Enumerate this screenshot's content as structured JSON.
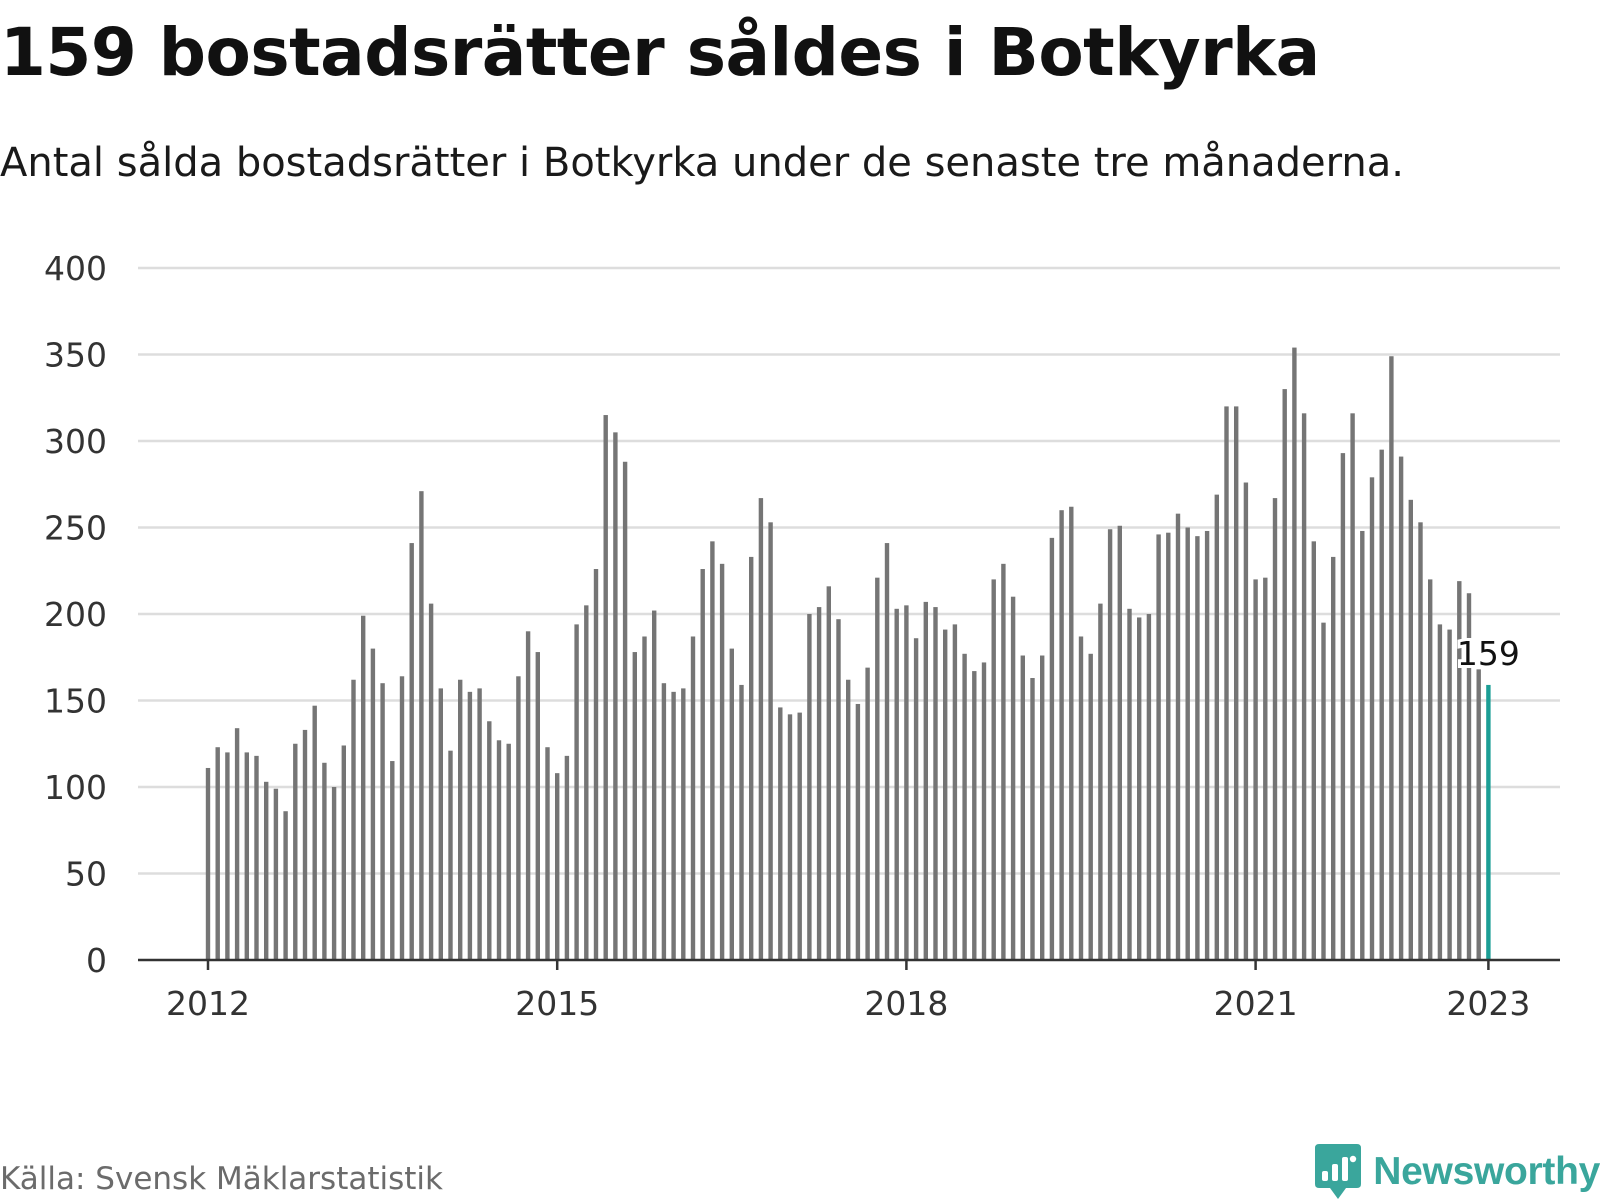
{
  "title": "159 bostadsrätter såldes i Botkyrka",
  "subtitle": "Antal sålda bostadsrätter i Botkyrka under de senaste tre månaderna.",
  "source": "Källa: Svensk Mäklarstatistik",
  "brand": {
    "name": "Newsworthy",
    "icon": "newsworthy-chart-bubble-icon",
    "color": "#3aa69c"
  },
  "colors": {
    "bar": "#757575",
    "highlight": "#1c9e95",
    "grid": "#dddddd",
    "axis": "#333333",
    "text": "#333333"
  },
  "chart_data": {
    "type": "bar",
    "x_start": "2012-01",
    "x_end": "2023-01",
    "xticks": [
      "2012",
      "2015",
      "2018",
      "2021",
      "2023"
    ],
    "yticks": [
      "0",
      "50",
      "100",
      "150",
      "200",
      "250",
      "300",
      "350",
      "400"
    ],
    "ylim": [
      0,
      400
    ],
    "grid": true,
    "values": [
      111,
      123,
      120,
      134,
      120,
      118,
      103,
      99,
      86,
      125,
      133,
      147,
      114,
      100,
      124,
      162,
      199,
      180,
      160,
      115,
      164,
      241,
      271,
      206,
      157,
      121,
      162,
      155,
      157,
      138,
      127,
      125,
      164,
      190,
      178,
      123,
      108,
      118,
      194,
      205,
      226,
      315,
      305,
      288,
      178,
      187,
      202,
      160,
      155,
      157,
      187,
      226,
      242,
      229,
      180,
      159,
      233,
      267,
      253,
      146,
      142,
      143,
      200,
      204,
      216,
      197,
      162,
      148,
      169,
      221,
      241,
      203,
      205,
      186,
      207,
      204,
      191,
      194,
      177,
      167,
      172,
      220,
      229,
      210,
      176,
      163,
      176,
      244,
      260,
      262,
      187,
      177,
      206,
      249,
      251,
      203,
      198,
      200,
      246,
      247,
      258,
      250,
      245,
      248,
      269,
      320,
      320,
      276,
      220,
      221,
      267,
      330,
      354,
      316,
      242,
      195,
      233,
      293,
      316,
      248,
      279,
      295,
      349,
      291,
      266,
      253,
      220,
      194,
      191,
      219,
      212,
      168,
      159
    ],
    "highlight_label": "159"
  }
}
